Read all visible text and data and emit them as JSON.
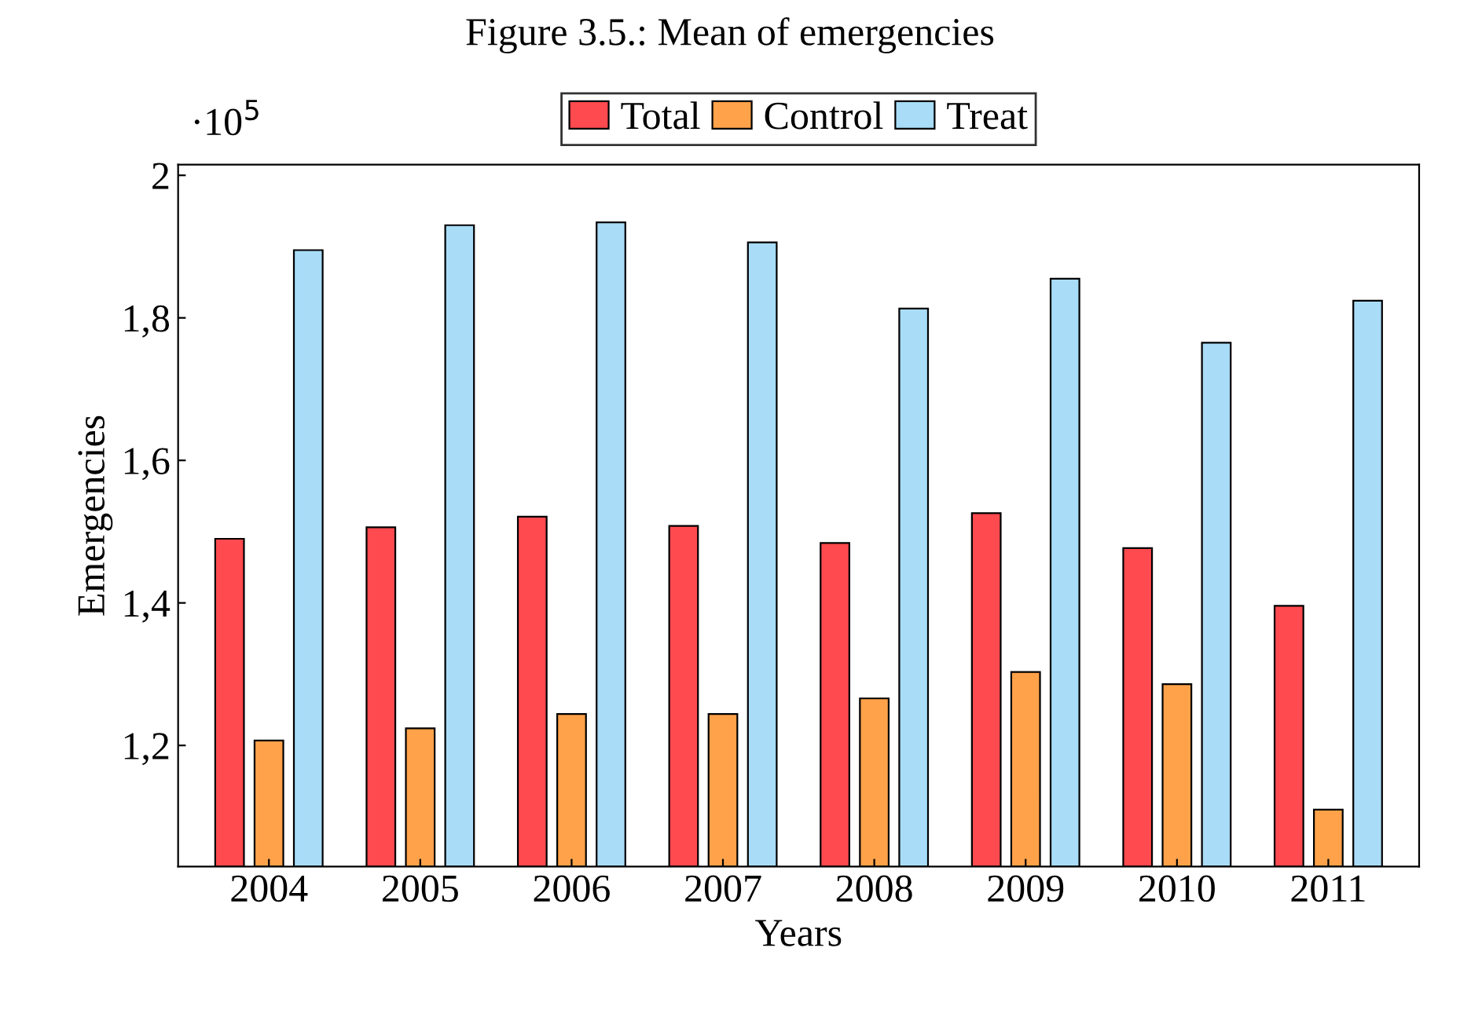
{
  "chart_data": {
    "type": "bar",
    "title": "Figure 3.5.: Mean of emergencies",
    "xlabel": "Years",
    "ylabel": "Emergencies",
    "annotations": [
      "·10$^{5}$"
    ],
    "categories": [
      "2004",
      "2005",
      "2006",
      "2007",
      "2008",
      "2009",
      "2010",
      "2011"
    ],
    "series": [
      {
        "name": "Total",
        "color": "#ff4a4f",
        "values": [
          1.49,
          1.506,
          1.521,
          1.508,
          1.484,
          1.526,
          1.477,
          1.396
        ]
      },
      {
        "name": "Control",
        "color": "#ffa24a",
        "values": [
          1.207,
          1.224,
          1.244,
          1.244,
          1.266,
          1.303,
          1.286,
          1.11
        ]
      },
      {
        "name": "Treat",
        "color": "#a8dcf7",
        "values": [
          1.895,
          1.93,
          1.934,
          1.906,
          1.813,
          1.855,
          1.765,
          1.824
        ]
      }
    ],
    "ylim": [
      1.03,
      2.015
    ],
    "yticks": [
      {
        "value": 1.2,
        "label": "1,2"
      },
      {
        "value": 1.4,
        "label": "1,4"
      },
      {
        "value": 1.6,
        "label": "1,6"
      },
      {
        "value": 1.8,
        "label": "1,8"
      },
      {
        "value": 2,
        "label": "2"
      }
    ],
    "grid": false,
    "legend": "top"
  }
}
